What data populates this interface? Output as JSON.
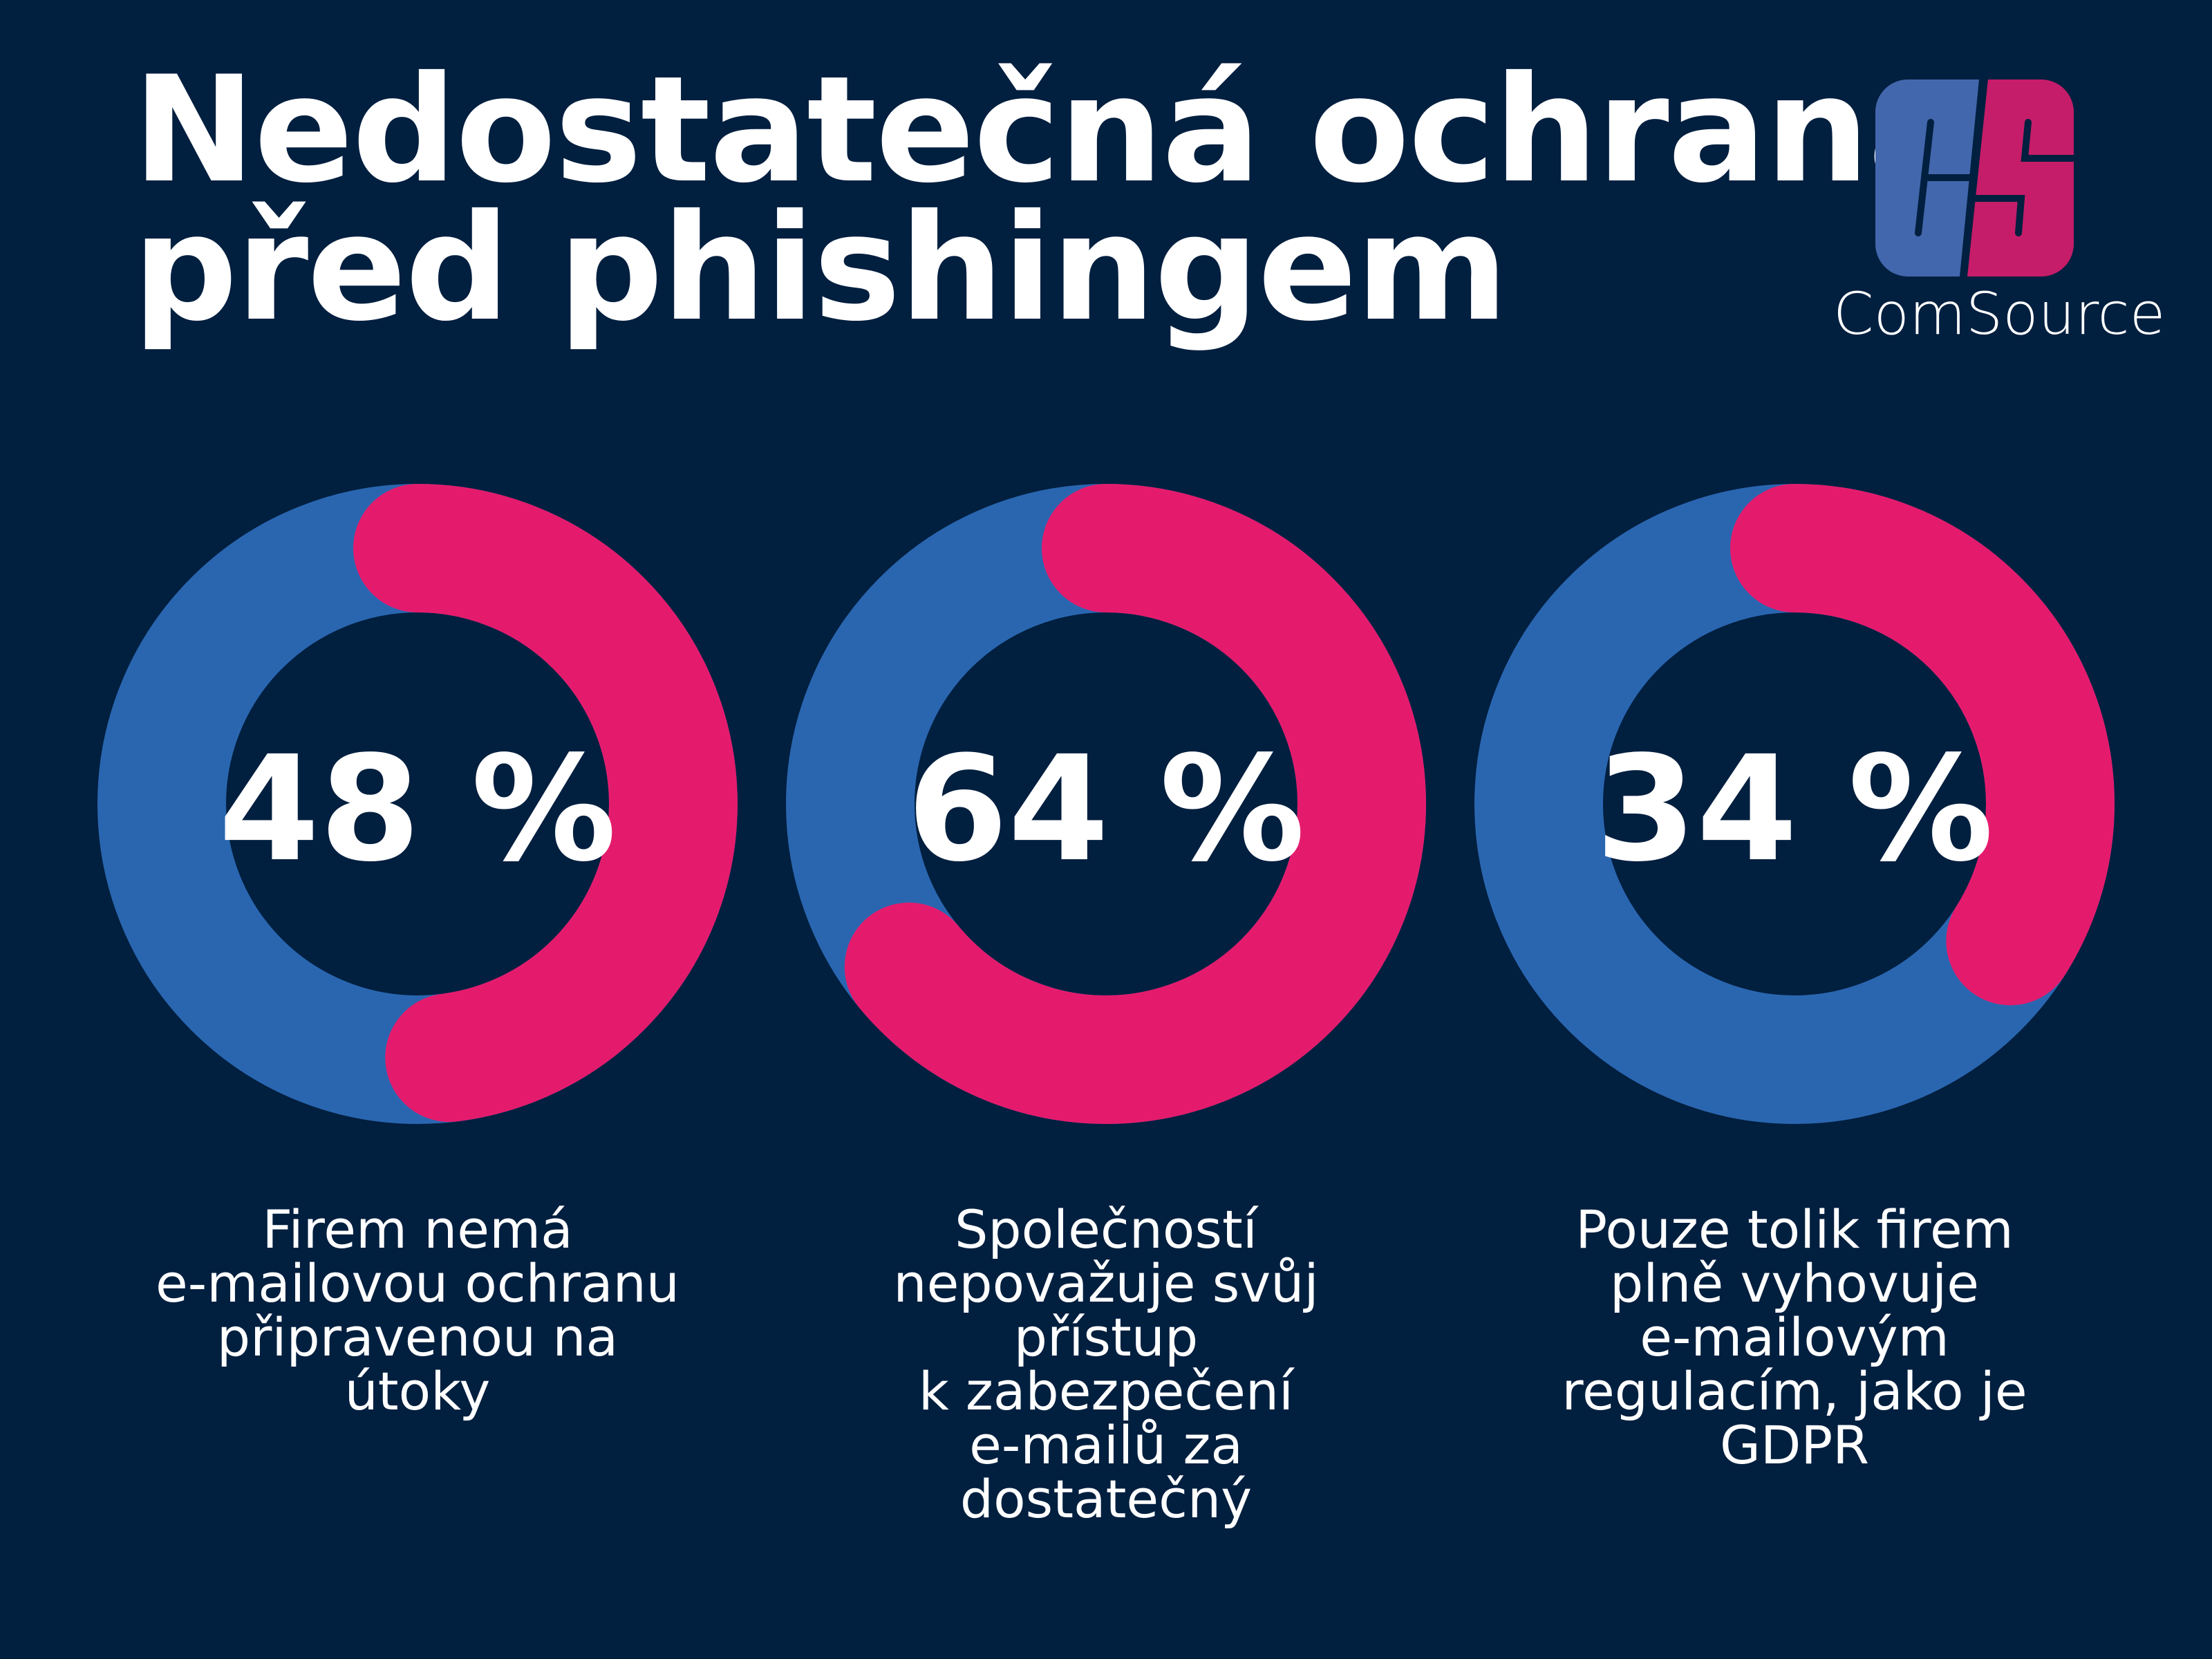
{
  "title": {
    "line1": "Nedostatečná ochrana",
    "line2": "před phishingem"
  },
  "logo": {
    "name": "ComSource",
    "colors": {
      "blue": "#4267ac",
      "pink": "#c51d69"
    }
  },
  "colors": {
    "background": "#011f3f",
    "track": "#2a66b0",
    "value": "#e41b6d"
  },
  "chart_data": {
    "type": "pie",
    "subtype": "donut",
    "title": "Nedostatečná ochrana před phishingem",
    "items": [
      {
        "value": 48,
        "value_label": "48 %",
        "label": "Firem nemá e-mailovou ochranu připravenou na útoky",
        "label_lines": [
          "Firem nemá",
          "e-mailovou ochranu",
          "připravenou na",
          "útoky"
        ]
      },
      {
        "value": 64,
        "value_label": "64 %",
        "label": "Společností nepovažuje svůj přístup k zabezpečení e-mailů za dostatečný",
        "label_lines": [
          "Společností",
          "nepovažuje svůj",
          "přístup",
          "k zabezpečení",
          "e-mailů za",
          "dostatečný"
        ]
      },
      {
        "value": 34,
        "value_label": "34 %",
        "label": "Pouze tolik firem plně vyhovuje e-mailovým regulacím, jako je GDPR",
        "label_lines": [
          "Pouze tolik firem",
          "plně vyhovuje",
          "e-mailovým",
          "regulacím, jako je",
          "GDPR"
        ]
      }
    ]
  }
}
